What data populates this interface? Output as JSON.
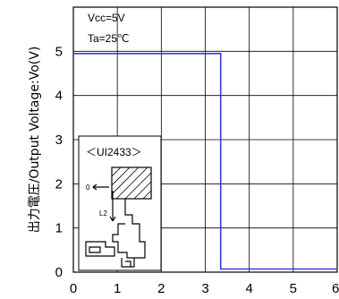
{
  "chart_data": {
    "type": "line",
    "title": "",
    "xlabel": "",
    "ylabel": "出力電圧/Output Voltage:Vo(V)",
    "xlim": [
      0,
      6
    ],
    "ylim": [
      0,
      6
    ],
    "xticks": [
      0,
      1,
      2,
      3,
      4,
      5,
      6
    ],
    "yticks": [
      0,
      1,
      2,
      3,
      4,
      5
    ],
    "grid": true,
    "annotations": [
      "Vcc=5V",
      "Ta=25℃"
    ],
    "series": [
      {
        "name": "",
        "color": "#3a3adf",
        "x": [
          0,
          3.35,
          3.35,
          6
        ],
        "y": [
          4.95,
          4.95,
          0.07,
          0.07
        ]
      }
    ],
    "inset": {
      "title": "＜UI2433＞",
      "label_zero": "0",
      "label_l2": "L2"
    }
  }
}
